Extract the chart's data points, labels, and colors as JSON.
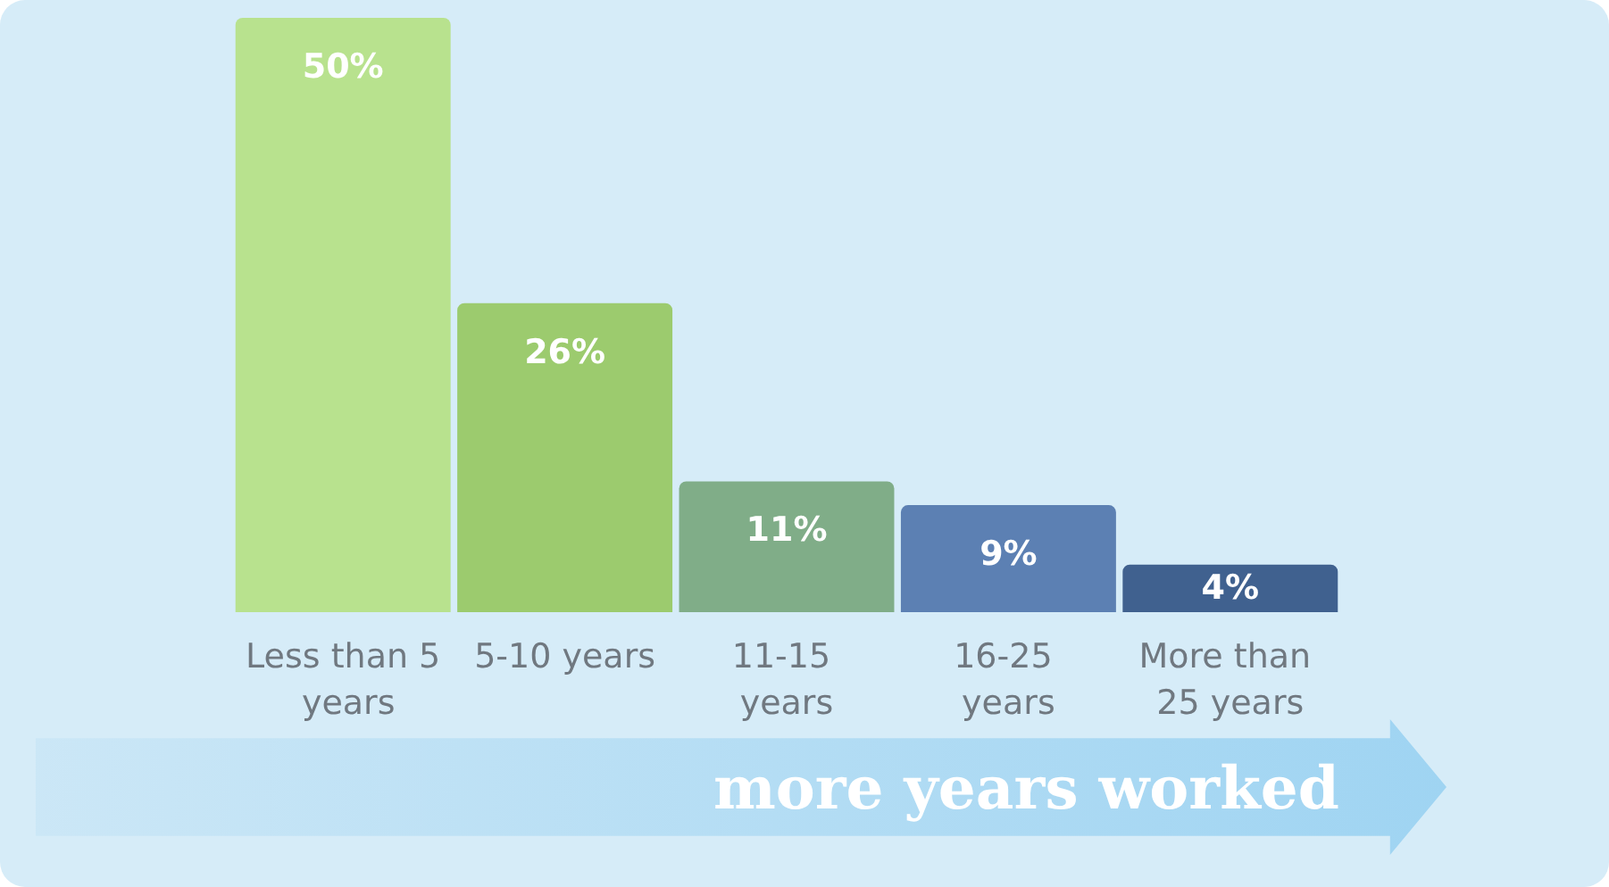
{
  "chart_data": {
    "type": "bar",
    "categories": [
      "Less than 5 years",
      "5-10 years",
      "11-15 years",
      "16-25 years",
      "More than 25 years"
    ],
    "values": [
      50,
      26,
      11,
      9,
      4
    ],
    "colors": [
      "#b8e28e",
      "#9ccb6e",
      "#80ad88",
      "#5c80b3",
      "#40618f"
    ],
    "value_labels": [
      "50%",
      "26%",
      "11%",
      "9%",
      "4%"
    ],
    "annotations": [
      "more years worked"
    ]
  }
}
